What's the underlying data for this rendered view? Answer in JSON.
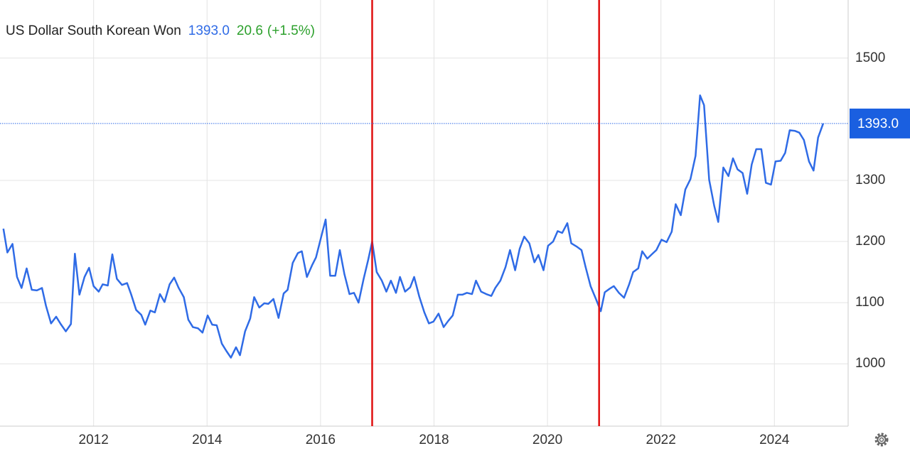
{
  "chart_data": {
    "type": "line",
    "title": "US Dollar South Korean Won",
    "last_value": {
      "value": 1393,
      "label": "1393.0"
    },
    "change": "20.6",
    "change_percent": "(+1.5%)",
    "color": "#2f6be6",
    "grid": true,
    "xlim": [
      2010.35,
      2025.3
    ],
    "xticks": [
      2012,
      2014,
      2016,
      2018,
      2020,
      2022,
      2024
    ],
    "ylim": [
      898,
      1595
    ],
    "yticks": [
      1000,
      1100,
      1200,
      1300,
      1500
    ],
    "vlines": [
      2016.91,
      2020.91
    ],
    "vline_color": "#e01010",
    "x": [
      2010.41,
      2010.48,
      2010.57,
      2010.65,
      2010.73,
      2010.82,
      2010.91,
      2011.0,
      2011.09,
      2011.16,
      2011.25,
      2011.34,
      2011.42,
      2011.51,
      2011.6,
      2011.67,
      2011.75,
      2011.84,
      2011.92,
      2012.0,
      2012.09,
      2012.16,
      2012.25,
      2012.33,
      2012.41,
      2012.5,
      2012.59,
      2012.66,
      2012.75,
      2012.84,
      2012.91,
      2013.0,
      2013.08,
      2013.17,
      2013.25,
      2013.34,
      2013.42,
      2013.5,
      2013.59,
      2013.67,
      2013.75,
      2013.84,
      2013.92,
      2014.01,
      2014.09,
      2014.17,
      2014.26,
      2014.34,
      2014.42,
      2014.51,
      2014.58,
      2014.67,
      2014.76,
      2014.83,
      2014.92,
      2015.01,
      2015.08,
      2015.17,
      2015.26,
      2015.35,
      2015.42,
      2015.51,
      2015.6,
      2015.67,
      2015.76,
      2015.85,
      2015.92,
      2016.01,
      2016.09,
      2016.17,
      2016.26,
      2016.34,
      2016.42,
      2016.51,
      2016.59,
      2016.67,
      2016.76,
      2016.84,
      2016.91,
      2016.99,
      2017.08,
      2017.16,
      2017.24,
      2017.33,
      2017.4,
      2017.49,
      2017.58,
      2017.65,
      2017.74,
      2017.83,
      2017.91,
      2017.99,
      2018.08,
      2018.17,
      2018.25,
      2018.33,
      2018.42,
      2018.5,
      2018.58,
      2018.67,
      2018.74,
      2018.83,
      2018.92,
      2019.01,
      2019.08,
      2019.17,
      2019.26,
      2019.34,
      2019.43,
      2019.51,
      2019.59,
      2019.68,
      2019.77,
      2019.84,
      2019.93,
      2020.01,
      2020.1,
      2020.18,
      2020.26,
      2020.35,
      2020.42,
      2020.51,
      2020.6,
      2020.67,
      2020.76,
      2020.85,
      2020.94,
      2021.01,
      2021.1,
      2021.17,
      2021.26,
      2021.35,
      2021.44,
      2021.51,
      2021.6,
      2021.67,
      2021.76,
      2021.85,
      2021.92,
      2022.01,
      2022.1,
      2022.19,
      2022.26,
      2022.35,
      2022.43,
      2022.52,
      2022.61,
      2022.69,
      2022.76,
      2022.85,
      2022.94,
      2023.01,
      2023.1,
      2023.19,
      2023.27,
      2023.35,
      2023.44,
      2023.52,
      2023.6,
      2023.68,
      2023.77,
      2023.85,
      2023.94,
      2024.02,
      2024.11,
      2024.19,
      2024.27,
      2024.36,
      2024.44,
      2024.52,
      2024.61,
      2024.69,
      2024.77,
      2024.86
    ],
    "values": [
      1221,
      1182,
      1196,
      1142,
      1124,
      1156,
      1121,
      1120,
      1124,
      1095,
      1066,
      1077,
      1065,
      1053,
      1065,
      1180,
      1113,
      1142,
      1157,
      1127,
      1118,
      1130,
      1128,
      1179,
      1139,
      1129,
      1132,
      1114,
      1088,
      1080,
      1064,
      1087,
      1084,
      1114,
      1101,
      1130,
      1141,
      1124,
      1109,
      1072,
      1060,
      1058,
      1051,
      1079,
      1064,
      1063,
      1033,
      1021,
      1010,
      1027,
      1014,
      1053,
      1074,
      1109,
      1092,
      1099,
      1098,
      1106,
      1075,
      1115,
      1121,
      1165,
      1181,
      1184,
      1142,
      1161,
      1174,
      1207,
      1236,
      1144,
      1144,
      1186,
      1147,
      1114,
      1116,
      1100,
      1139,
      1170,
      1200,
      1150,
      1136,
      1118,
      1136,
      1116,
      1142,
      1118,
      1125,
      1142,
      1110,
      1084,
      1066,
      1069,
      1082,
      1060,
      1070,
      1079,
      1113,
      1113,
      1116,
      1114,
      1136,
      1118,
      1114,
      1111,
      1124,
      1136,
      1158,
      1186,
      1153,
      1188,
      1208,
      1197,
      1166,
      1178,
      1153,
      1193,
      1200,
      1217,
      1214,
      1230,
      1197,
      1192,
      1186,
      1159,
      1127,
      1107,
      1086,
      1117,
      1123,
      1127,
      1116,
      1108,
      1130,
      1150,
      1156,
      1184,
      1172,
      1180,
      1186,
      1203,
      1199,
      1216,
      1261,
      1243,
      1285,
      1302,
      1340,
      1439,
      1423,
      1301,
      1258,
      1232,
      1321,
      1307,
      1336,
      1318,
      1312,
      1278,
      1326,
      1351,
      1351,
      1296,
      1293,
      1331,
      1332,
      1345,
      1382,
      1381,
      1378,
      1366,
      1331,
      1316,
      1370,
      1393
    ]
  }
}
